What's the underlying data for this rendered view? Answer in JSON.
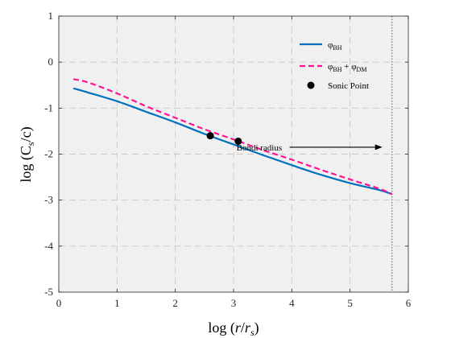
{
  "chart_data": {
    "type": "line",
    "xlabel": "log (r/r_s)",
    "ylabel": "log (C_s/c)",
    "xlim": [
      0,
      6
    ],
    "ylim": [
      -5,
      1
    ],
    "xticks": [
      "0",
      "1",
      "2",
      "3",
      "4",
      "5",
      "6"
    ],
    "yticks": [
      "-5",
      "-4",
      "-3",
      "-2",
      "-1",
      "0",
      "1"
    ],
    "grid": true,
    "legend_position": "top-right",
    "colors": {
      "bh": "#0072BD",
      "bh_dm": "#FF1493",
      "sonic": "#000000",
      "background": "#F0F0F0"
    },
    "series": [
      {
        "name": "φ_BH",
        "style": "solid",
        "x": [
          0.25,
          0.5,
          1.0,
          1.5,
          2.0,
          2.5,
          3.0,
          3.5,
          4.0,
          4.5,
          5.0,
          5.5,
          5.72
        ],
        "y": [
          -0.57,
          -0.66,
          -0.85,
          -1.08,
          -1.31,
          -1.56,
          -1.79,
          -2.02,
          -2.24,
          -2.45,
          -2.63,
          -2.78,
          -2.87
        ]
      },
      {
        "name": "φ_BH + φ_DM",
        "style": "dashed",
        "x": [
          0.25,
          0.5,
          1.0,
          1.5,
          2.0,
          2.5,
          3.0,
          3.5,
          4.0,
          4.5,
          5.0,
          5.5,
          5.72
        ],
        "y": [
          -0.37,
          -0.44,
          -0.68,
          -0.96,
          -1.21,
          -1.46,
          -1.68,
          -1.91,
          -2.12,
          -2.34,
          -2.55,
          -2.75,
          -2.87
        ]
      }
    ],
    "sonic_points": {
      "name": "Sonic Point",
      "x": [
        2.6,
        3.08
      ],
      "y": [
        -1.6,
        -1.72
      ]
    },
    "vertical_line": {
      "x": 5.72,
      "style": "dotted"
    },
    "annotation": {
      "text": "Bondi radius",
      "x": 3.05,
      "y": -1.85
    }
  }
}
